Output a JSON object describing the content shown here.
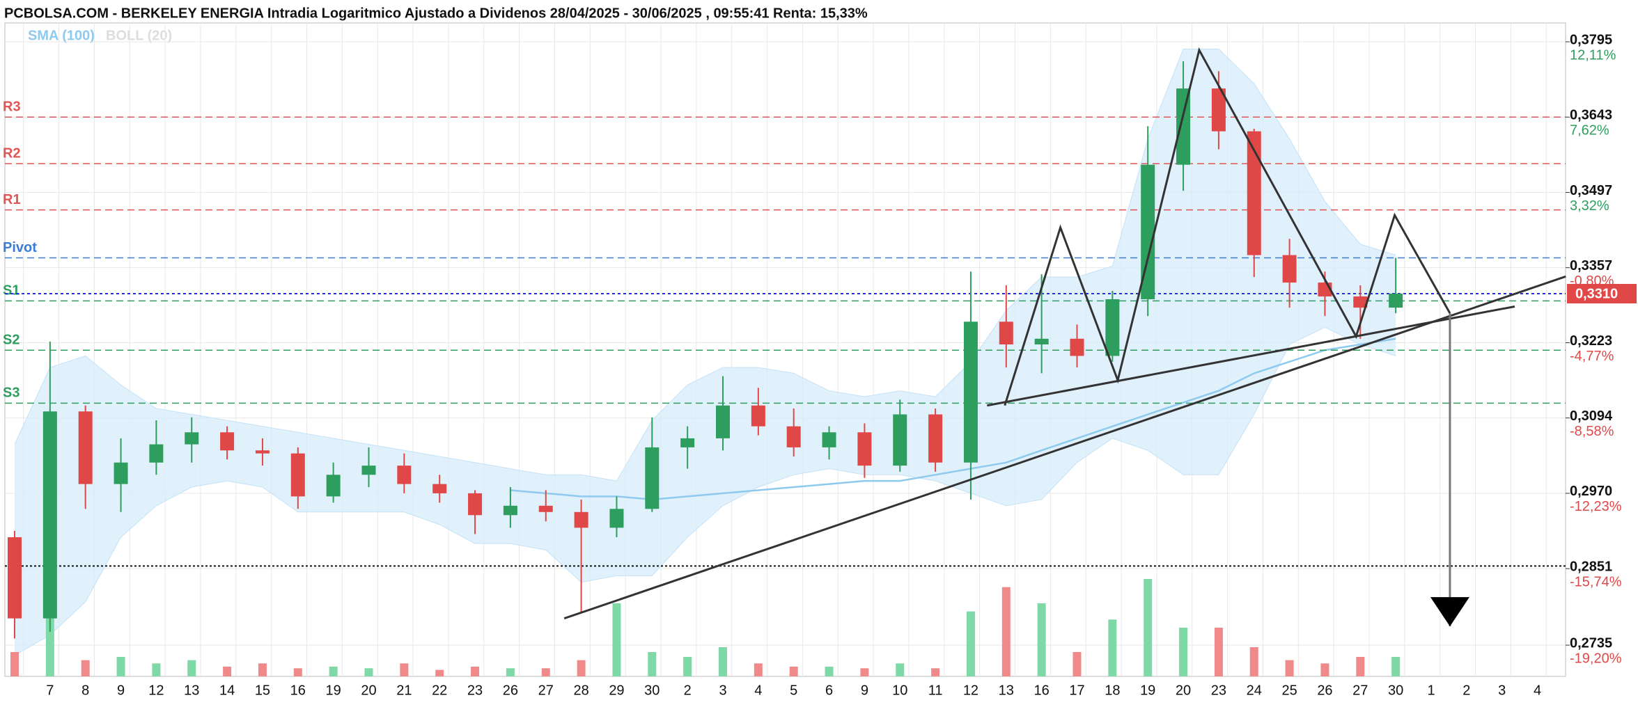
{
  "chart_data": {
    "type": "candlestick",
    "title": "PCBOLSA.COM - BERKELEY ENERGIA Intradia Logaritmico Ajustado a Dividenos 28/04/2025 - 30/06/2025 , 09:55:41 Renta: 15,33%",
    "legend": [
      "SMA (100)",
      "BOLL (20)"
    ],
    "log_scale": true,
    "grid": true,
    "categories": [
      null,
      "7",
      "8",
      "9",
      "12",
      "13",
      "14",
      "15",
      "16",
      "19",
      "20",
      "21",
      "22",
      "23",
      "26",
      "27",
      "28",
      "29",
      "30",
      "2",
      "3",
      "4",
      "5",
      "6",
      "9",
      "10",
      "11",
      "12",
      "13",
      "16",
      "17",
      "18",
      "19",
      "20",
      "23",
      "24",
      "25",
      "26",
      "27",
      "30",
      "1",
      "2",
      "3",
      "4"
    ],
    "open": [
      0.29,
      0.2775,
      0.3105,
      0.2985,
      0.302,
      0.305,
      0.307,
      0.304,
      0.3035,
      0.2965,
      0.3,
      0.3015,
      0.2985,
      0.297,
      0.2935,
      0.295,
      0.294,
      0.2915,
      0.2945,
      0.3045,
      0.306,
      0.3115,
      0.308,
      0.3045,
      0.307,
      0.3015,
      0.31,
      0.302,
      0.326,
      0.322,
      0.323,
      0.32,
      0.33,
      0.355,
      0.37,
      0.3615,
      0.338,
      0.333,
      0.3305,
      0.3285,
      null,
      null,
      null,
      null
    ],
    "high": [
      0.291,
      0.3225,
      0.3115,
      0.306,
      0.309,
      0.3095,
      0.308,
      0.306,
      0.3045,
      0.302,
      0.3045,
      0.3035,
      0.3,
      0.2975,
      0.298,
      0.2975,
      0.296,
      0.2965,
      0.3095,
      0.308,
      0.3165,
      0.3145,
      0.311,
      0.308,
      0.3085,
      0.3125,
      0.311,
      0.335,
      0.3325,
      0.3345,
      0.3255,
      0.3315,
      0.3625,
      0.3755,
      0.3735,
      0.362,
      0.341,
      0.335,
      0.3325,
      0.3375,
      null,
      null,
      null,
      null
    ],
    "low": [
      0.2745,
      0.2755,
      0.2945,
      0.294,
      0.3,
      0.302,
      0.3025,
      0.3015,
      0.2945,
      0.2955,
      0.298,
      0.297,
      0.2955,
      0.2905,
      0.2915,
      0.2925,
      0.2785,
      0.29,
      0.294,
      0.301,
      0.304,
      0.3065,
      0.303,
      0.3025,
      0.2995,
      0.3005,
      0.3005,
      0.296,
      0.318,
      0.317,
      0.318,
      0.319,
      0.327,
      0.35,
      0.358,
      0.334,
      0.3285,
      0.327,
      0.323,
      0.3275,
      null,
      null,
      null,
      null
    ],
    "close": [
      0.2775,
      0.3105,
      0.2985,
      0.302,
      0.305,
      0.307,
      0.304,
      0.3035,
      0.2965,
      0.3,
      0.3015,
      0.2985,
      0.297,
      0.2935,
      0.295,
      0.294,
      0.2915,
      0.2945,
      0.3045,
      0.306,
      0.3115,
      0.308,
      0.3045,
      0.307,
      0.3015,
      0.31,
      0.302,
      0.326,
      0.322,
      0.323,
      0.32,
      0.33,
      0.355,
      0.37,
      0.3615,
      0.338,
      0.333,
      0.3305,
      0.3285,
      0.331,
      null,
      null,
      null,
      null
    ],
    "volume": [
      15,
      40,
      10,
      12,
      8,
      10,
      6,
      8,
      5,
      6,
      5,
      8,
      4,
      6,
      5,
      5,
      10,
      45,
      15,
      12,
      18,
      8,
      6,
      6,
      5,
      8,
      5,
      40,
      55,
      45,
      15,
      35,
      60,
      30,
      30,
      18,
      10,
      8,
      12,
      12,
      null,
      null,
      null,
      null
    ],
    "boll_upper": [
      0.305,
      0.318,
      0.32,
      0.315,
      0.311,
      0.31,
      0.309,
      0.308,
      0.307,
      0.306,
      0.305,
      0.304,
      0.303,
      0.302,
      0.301,
      0.3,
      0.3,
      0.299,
      0.309,
      0.315,
      0.318,
      0.318,
      0.317,
      0.314,
      0.313,
      0.314,
      0.313,
      0.319,
      0.328,
      0.334,
      0.334,
      0.336,
      0.36,
      0.378,
      0.378,
      0.371,
      0.36,
      0.348,
      0.34,
      0.338,
      null,
      null,
      null,
      null
    ],
    "boll_lower": [
      0.272,
      0.275,
      0.28,
      0.29,
      0.295,
      0.298,
      0.299,
      0.298,
      0.294,
      0.294,
      0.294,
      0.294,
      0.292,
      0.289,
      0.289,
      0.288,
      0.283,
      0.284,
      0.284,
      0.29,
      0.295,
      0.298,
      0.3,
      0.301,
      0.3,
      0.3,
      0.299,
      0.297,
      0.295,
      0.296,
      0.302,
      0.306,
      0.304,
      0.3,
      0.3,
      0.31,
      0.322,
      0.325,
      0.322,
      0.32,
      null,
      null,
      null,
      null
    ],
    "sma": [
      null,
      null,
      null,
      null,
      null,
      null,
      null,
      null,
      null,
      null,
      null,
      null,
      null,
      null,
      0.2975,
      0.297,
      0.2965,
      0.2965,
      0.296,
      0.2965,
      0.297,
      0.2975,
      0.298,
      0.2985,
      0.299,
      0.299,
      0.3,
      0.301,
      0.302,
      0.304,
      0.306,
      0.308,
      0.31,
      0.312,
      0.314,
      0.317,
      0.319,
      0.321,
      0.322,
      0.323,
      null,
      null,
      null,
      null
    ],
    "ylim": [
      0.2689,
      0.3834
    ],
    "yticks": [
      {
        "value": 0.3795,
        "label": "0,3795"
      },
      {
        "value": 0.3643,
        "label": "0,3643"
      },
      {
        "value": 0.3497,
        "label": "0,3497"
      },
      {
        "value": 0.3357,
        "label": "0,3357"
      },
      {
        "value": 0.3223,
        "label": "0,3223"
      },
      {
        "value": 0.3094,
        "label": "0,3094"
      },
      {
        "value": 0.297,
        "label": "0,2970"
      },
      {
        "value": 0.2851,
        "label": "0,2851"
      },
      {
        "value": 0.2735,
        "label": "0,2735"
      }
    ],
    "ytick_pct": [
      "12,11%",
      "7,62%",
      "3,32%",
      "-0,80%",
      "-4,77%",
      "-8,58%",
      "-12,23%",
      "-15,74%",
      "-19,20%"
    ],
    "pivots": [
      {
        "name": "R3",
        "value": 0.3643,
        "color": "#e05555"
      },
      {
        "name": "R2",
        "value": 0.3552,
        "color": "#e05555"
      },
      {
        "name": "R1",
        "value": 0.3464,
        "color": "#e05555"
      },
      {
        "name": "Pivot",
        "value": 0.3375,
        "color": "#3a7bd5"
      },
      {
        "name": "S1",
        "value": 0.3297,
        "color": "#2e9e5e"
      },
      {
        "name": "S2",
        "value": 0.321,
        "color": "#2e9e5e"
      },
      {
        "name": "S3",
        "value": 0.3119,
        "color": "#2e9e5e"
      }
    ],
    "last": {
      "value": 0.331,
      "label": "0,3310"
    },
    "hline": 0.2855,
    "drawings": [
      {
        "x": [
          15.52,
          43.8
        ],
        "y": [
          0.2775,
          0.3341
        ]
      },
      {
        "x": [
          27.46,
          42.36
        ],
        "y": [
          0.3115,
          0.3287
        ]
      },
      {
        "x": [
          27.96,
          29.53,
          31.15,
          33.45,
          37.88,
          38.97,
          40.53
        ],
        "y": [
          0.3115,
          0.3431,
          0.3158,
          0.3778,
          0.3234,
          0.3454,
          0.3275
        ]
      },
      {
        "x": [
          40.53,
          40.53
        ],
        "y": [
          0.3275,
          0.2763
        ]
      }
    ]
  }
}
